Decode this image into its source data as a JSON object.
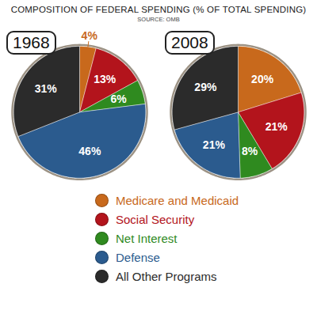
{
  "chart_data": {
    "type": "pie",
    "title": "COMPOSITION OF FEDERAL SPENDING (% OF TOTAL SPENDING)",
    "subtitle": "SOURCE: OMB",
    "categories": [
      "Medicare and Medicaid",
      "Social Security",
      "Net Interest",
      "Defense",
      "All Other Programs"
    ],
    "colors": [
      "#c8691c",
      "#b3141c",
      "#2f8a1f",
      "#2b5b8e",
      "#2b2b2b"
    ],
    "series": [
      {
        "name": "1968",
        "values": [
          4,
          13,
          6,
          46,
          31
        ],
        "value_labels": [
          "4%",
          "13%",
          "6%",
          "46%",
          "31%"
        ]
      },
      {
        "name": "2008",
        "values": [
          20,
          21,
          8,
          21,
          29
        ],
        "value_labels": [
          "20%",
          "21%",
          "8%",
          "21%",
          "29%"
        ]
      }
    ],
    "data_labels": true,
    "legend": "bottom"
  }
}
